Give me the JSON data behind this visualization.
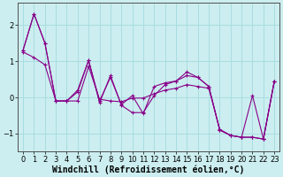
{
  "background_color": "#cceef0",
  "grid_color": "#a8dde0",
  "line_color": "#880088",
  "xlabel": "Windchill (Refroidissement éolien,°C)",
  "xlabel_fontsize": 7,
  "tick_fontsize": 6,
  "xlim": [
    -0.5,
    23.5
  ],
  "ylim": [
    -1.5,
    2.6
  ],
  "yticks": [
    -1,
    0,
    1,
    2
  ],
  "xticks": [
    0,
    1,
    2,
    3,
    4,
    5,
    6,
    7,
    8,
    9,
    10,
    11,
    12,
    13,
    14,
    15,
    16,
    17,
    18,
    19,
    20,
    21,
    22,
    23
  ],
  "series1_x": [
    0,
    1,
    2,
    3,
    4,
    5,
    6,
    7,
    8,
    9,
    10,
    11,
    12,
    13,
    14,
    15,
    16,
    17,
    18,
    19,
    20,
    21,
    22,
    23
  ],
  "series1_y": [
    1.3,
    2.3,
    1.5,
    -0.1,
    -0.1,
    0.2,
    1.02,
    -0.1,
    0.55,
    -0.2,
    0.05,
    -0.45,
    0.3,
    0.4,
    0.45,
    0.6,
    0.55,
    0.3,
    -0.9,
    -1.05,
    -1.1,
    -1.1,
    -1.15,
    0.45
  ],
  "series2_x": [
    0,
    1,
    2,
    3,
    4,
    5,
    6,
    7,
    8,
    9,
    10,
    11,
    12,
    13,
    14,
    15,
    16,
    17,
    18,
    19,
    20,
    21,
    22,
    23
  ],
  "series2_y": [
    1.3,
    2.3,
    1.5,
    -0.1,
    -0.1,
    0.15,
    1.02,
    -0.15,
    0.6,
    -0.22,
    -0.42,
    -0.42,
    0.05,
    0.35,
    0.45,
    0.7,
    0.55,
    0.3,
    -0.9,
    -1.05,
    -1.1,
    -1.1,
    -1.15,
    0.45
  ],
  "series3_x": [
    0,
    1,
    2,
    3,
    4,
    5,
    6,
    7,
    8,
    9,
    10,
    11,
    12,
    13,
    14,
    15,
    16,
    17,
    18,
    19,
    20,
    21,
    22,
    23
  ],
  "series3_y": [
    1.25,
    1.1,
    0.9,
    -0.1,
    -0.1,
    -0.1,
    0.85,
    -0.05,
    -0.1,
    -0.12,
    -0.02,
    -0.02,
    0.1,
    0.2,
    0.25,
    0.35,
    0.3,
    0.25,
    -0.88,
    -1.05,
    -1.1,
    0.05,
    -1.15,
    0.45
  ]
}
